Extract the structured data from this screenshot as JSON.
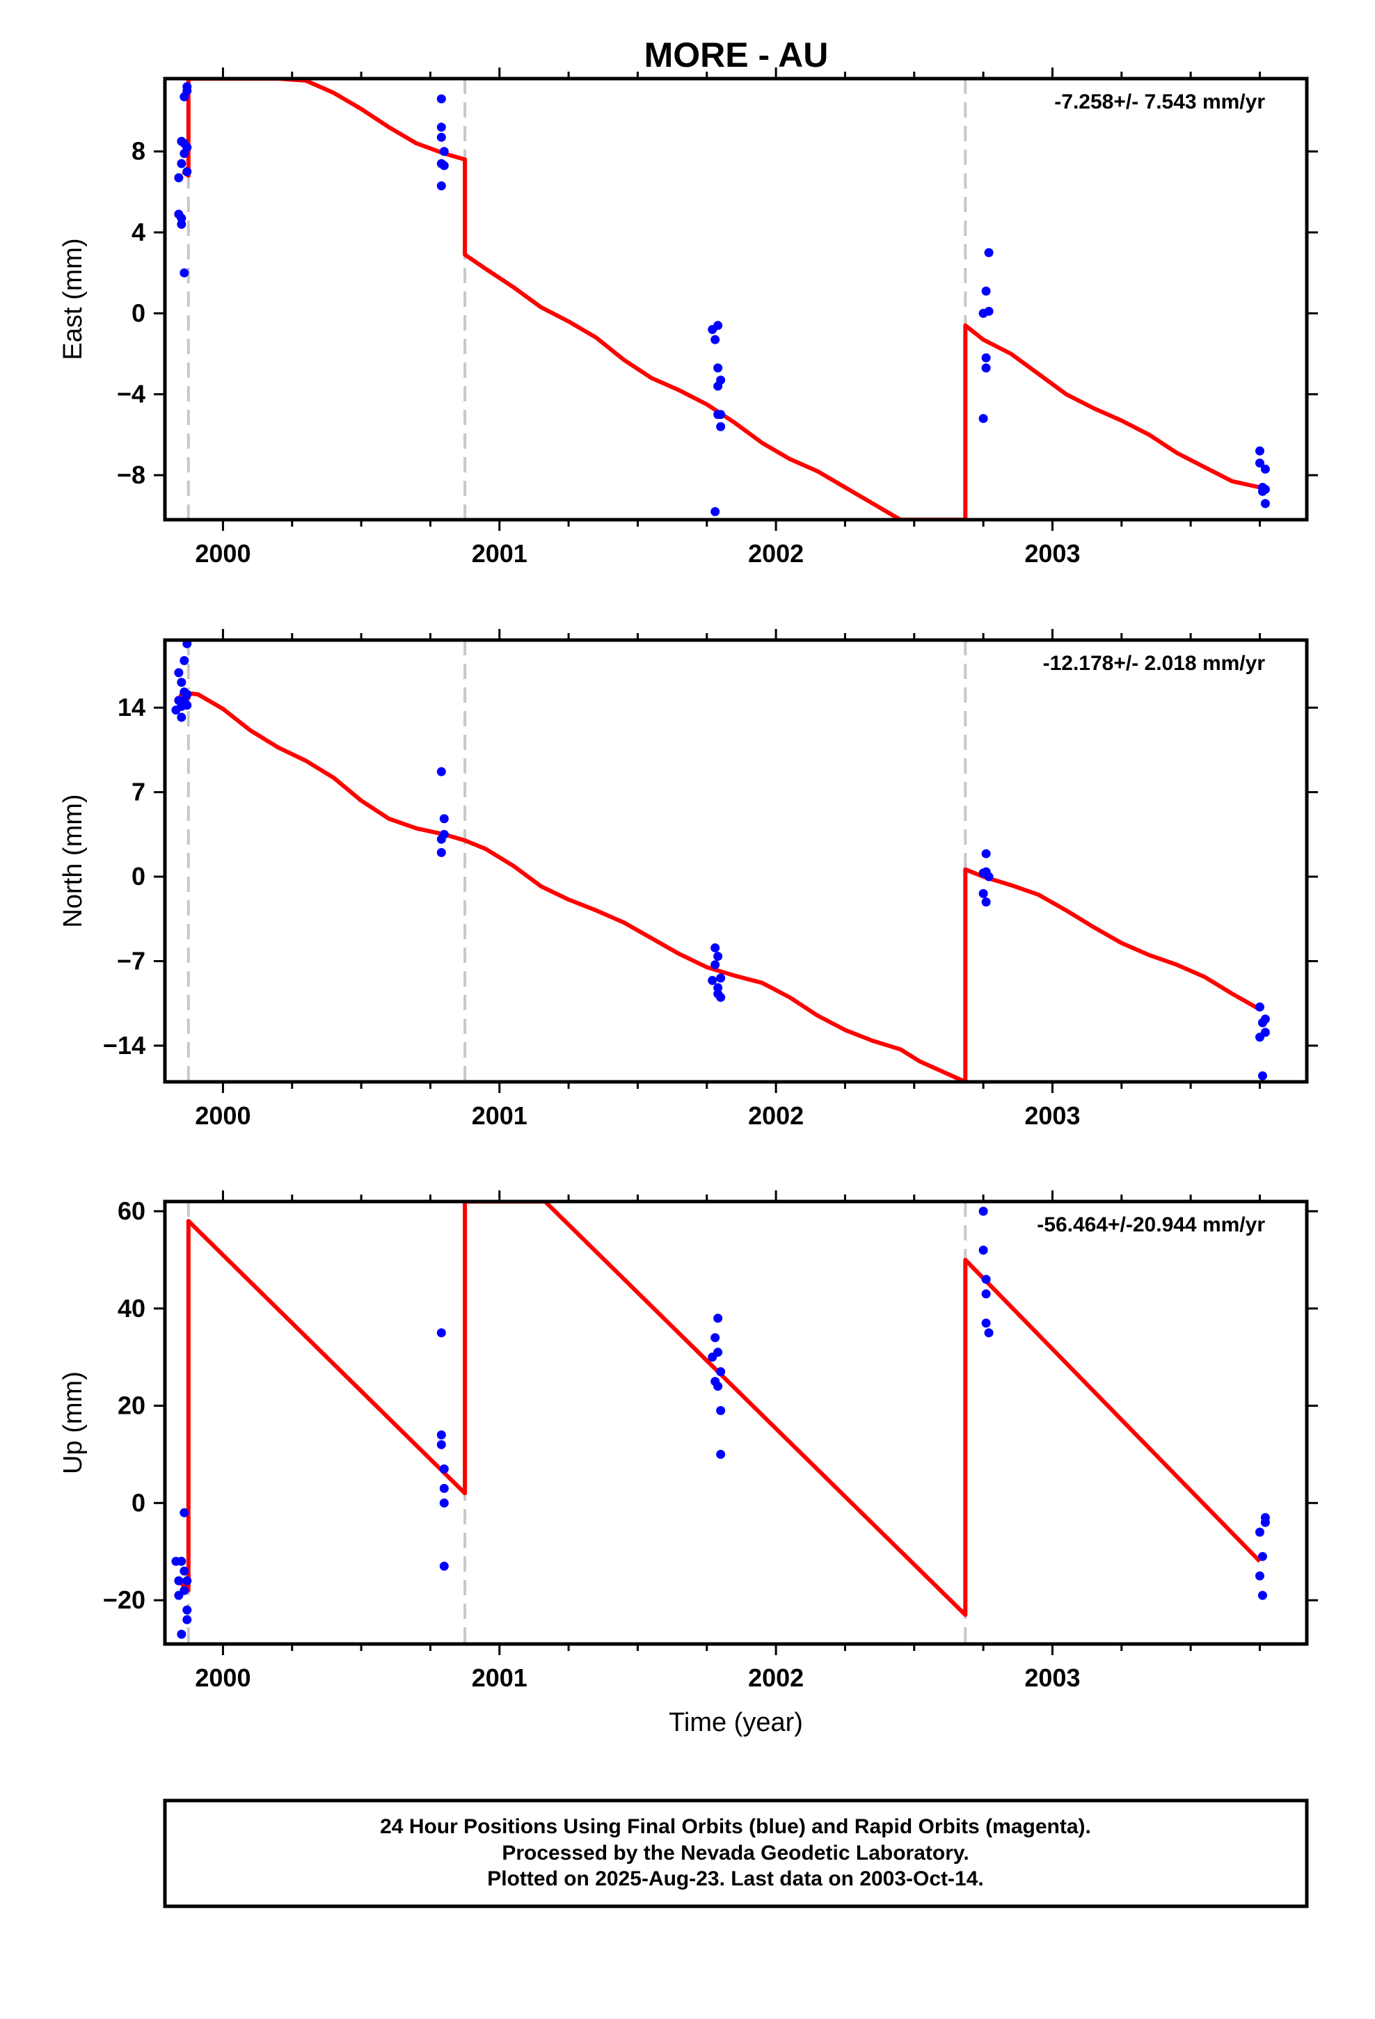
{
  "title": "MORE - AU",
  "footer": {
    "lines": [
      "24 Hour Positions Using Final Orbits (blue) and Rapid Orbits (magenta).",
      "Processed by the Nevada Geodetic Laboratory.",
      "Plotted on 2025-Aug-23. Last data on 2003-Oct-14."
    ]
  },
  "chart_data": [
    {
      "type": "scatter",
      "component": "east",
      "ylabel": "East (mm)",
      "xlabel": "",
      "xlim": [
        1999.79,
        2003.92
      ],
      "ylim": [
        -10.2,
        11.6
      ],
      "x_ticks": [
        2000,
        2001,
        2002,
        2003
      ],
      "y_ticks": [
        -8,
        -4,
        0,
        4,
        8
      ],
      "rate_text": "-7.258+/- 7.543 mm/yr",
      "dashed_lines_x": [
        1999.875,
        2000.875,
        2002.685
      ],
      "colors": {
        "points": "#0000ff",
        "model": "#ff0000",
        "breaks": "#c8c8c8"
      },
      "series": [
        {
          "role": "observations",
          "x": [
            1999.84,
            1999.84,
            1999.85,
            1999.85,
            1999.85,
            1999.85,
            1999.86,
            1999.86,
            1999.86,
            1999.86,
            1999.87,
            1999.87,
            1999.87,
            1999.87,
            2000.79,
            2000.79,
            2000.79,
            2000.79,
            2000.79,
            2000.8,
            2000.8,
            2001.77,
            2001.78,
            2001.78,
            2001.79,
            2001.79,
            2001.79,
            2001.79,
            2001.8,
            2001.8,
            2001.8,
            2002.75,
            2002.75,
            2002.76,
            2002.76,
            2002.76,
            2002.77,
            2002.77,
            2003.75,
            2003.75,
            2003.76,
            2003.76,
            2003.77,
            2003.77,
            2003.77
          ],
          "y": [
            6.7,
            4.9,
            7.4,
            4.7,
            8.5,
            4.4,
            10.7,
            8.4,
            7.9,
            2.0,
            11.2,
            8.2,
            7.0,
            11.0,
            6.3,
            7.4,
            10.6,
            8.7,
            9.2,
            7.3,
            8.0,
            -0.8,
            -9.8,
            -1.3,
            -0.6,
            -5.0,
            -2.7,
            -3.6,
            -5.0,
            -3.3,
            -5.6,
            0.0,
            -5.2,
            -2.2,
            -2.7,
            1.1,
            3.0,
            0.1,
            -6.8,
            -7.4,
            -8.6,
            -8.8,
            -9.4,
            -8.7,
            -7.7
          ]
        },
        {
          "role": "model",
          "x": [
            1999.855,
            1999.875,
            1999.875,
            1999.885,
            1999.91,
            2000.0,
            2000.1,
            2000.2,
            2000.3,
            2000.4,
            2000.5,
            2000.6,
            2000.7,
            2000.8,
            2000.875,
            2000.875,
            2000.95,
            2001.05,
            2001.15,
            2001.25,
            2001.35,
            2001.45,
            2001.55,
            2001.65,
            2001.75,
            2001.85,
            2001.95,
            2002.05,
            2002.15,
            2002.25,
            2002.35,
            2002.45,
            2002.55,
            2002.65,
            2002.685,
            2002.685,
            2002.75,
            2002.85,
            2002.95,
            2003.05,
            2003.15,
            2003.25,
            2003.35,
            2003.45,
            2003.55,
            2003.65,
            2003.75
          ],
          "y": [
            7.0,
            6.8,
            11.6,
            11.6,
            11.6,
            11.6,
            11.6,
            11.6,
            11.5,
            10.9,
            10.1,
            9.2,
            8.4,
            7.9,
            7.6,
            2.9,
            2.2,
            1.3,
            0.3,
            -0.4,
            -1.2,
            -2.3,
            -3.2,
            -3.8,
            -4.5,
            -5.4,
            -6.4,
            -7.2,
            -7.8,
            -8.6,
            -9.4,
            -10.2,
            -10.2,
            -10.2,
            -10.2,
            -0.6,
            -1.3,
            -2.0,
            -3.0,
            -4.0,
            -4.7,
            -5.3,
            -6.0,
            -6.9,
            -7.6,
            -8.3,
            -8.6
          ]
        }
      ]
    },
    {
      "type": "scatter",
      "component": "north",
      "ylabel": "North (mm)",
      "xlabel": "",
      "xlim": [
        1999.79,
        2003.92
      ],
      "ylim": [
        -17.0,
        19.6
      ],
      "x_ticks": [
        2000,
        2001,
        2002,
        2003
      ],
      "y_ticks": [
        -14,
        -7,
        0,
        7,
        14
      ],
      "rate_text": "-12.178+/- 2.018 mm/yr",
      "dashed_lines_x": [
        1999.875,
        2000.875,
        2002.685
      ],
      "colors": {
        "points": "#0000ff",
        "model": "#ff0000",
        "breaks": "#c8c8c8"
      },
      "series": [
        {
          "role": "observations",
          "x": [
            1999.83,
            1999.84,
            1999.84,
            1999.85,
            1999.85,
            1999.85,
            1999.86,
            1999.86,
            1999.86,
            1999.87,
            1999.87,
            1999.87,
            2000.79,
            2000.79,
            2000.79,
            2000.8,
            2000.8,
            2001.77,
            2001.78,
            2001.78,
            2001.79,
            2001.79,
            2001.79,
            2001.8,
            2001.8,
            2002.75,
            2002.75,
            2002.76,
            2002.76,
            2002.76,
            2002.77,
            2003.75,
            2003.75,
            2003.76,
            2003.76,
            2003.77,
            2003.77
          ],
          "y": [
            13.8,
            16.9,
            14.6,
            14.1,
            16.1,
            13.2,
            17.9,
            15.3,
            14.6,
            19.3,
            14.2,
            15.1,
            2.0,
            3.1,
            8.7,
            4.8,
            3.5,
            -8.6,
            -5.9,
            -7.3,
            -9.2,
            -9.7,
            -6.6,
            -8.4,
            -10.0,
            0.3,
            -1.4,
            -2.1,
            0.4,
            1.9,
            0.0,
            -13.3,
            -10.8,
            -12.1,
            -16.5,
            -12.9,
            -11.8
          ]
        },
        {
          "role": "model",
          "x": [
            1999.84,
            1999.875,
            1999.875,
            1999.91,
            2000.0,
            2000.1,
            2000.2,
            2000.3,
            2000.4,
            2000.5,
            2000.6,
            2000.7,
            2000.8,
            2000.875,
            2000.95,
            2001.05,
            2001.15,
            2001.25,
            2001.35,
            2001.45,
            2001.55,
            2001.65,
            2001.75,
            2001.85,
            2001.95,
            2002.05,
            2002.15,
            2002.25,
            2002.35,
            2002.45,
            2002.52,
            2002.685,
            2002.685,
            2002.75,
            2002.85,
            2002.95,
            2003.05,
            2003.15,
            2003.25,
            2003.35,
            2003.45,
            2003.55,
            2003.65,
            2003.75
          ],
          "y": [
            15.0,
            14.8,
            15.2,
            15.1,
            13.9,
            12.1,
            10.7,
            9.6,
            8.2,
            6.3,
            4.8,
            4.0,
            3.5,
            3.0,
            2.3,
            0.9,
            -0.8,
            -1.9,
            -2.8,
            -3.8,
            -5.1,
            -6.4,
            -7.5,
            -8.2,
            -8.8,
            -10.0,
            -11.5,
            -12.7,
            -13.6,
            -14.3,
            -15.3,
            -17.0,
            0.6,
            0.0,
            -0.7,
            -1.5,
            -2.8,
            -4.2,
            -5.5,
            -6.5,
            -7.3,
            -8.3,
            -9.7,
            -11.0
          ]
        }
      ]
    },
    {
      "type": "scatter",
      "component": "up",
      "ylabel": "Up (mm)",
      "xlabel": "Time (year)",
      "xlim": [
        1999.79,
        2003.92
      ],
      "ylim": [
        -29.0,
        62.0
      ],
      "x_ticks": [
        2000,
        2001,
        2002,
        2003
      ],
      "y_ticks": [
        -20,
        0,
        20,
        40,
        60
      ],
      "rate_text": "-56.464+/-20.944 mm/yr",
      "dashed_lines_x": [
        1999.875,
        2000.875,
        2002.685
      ],
      "colors": {
        "points": "#0000ff",
        "model": "#ff0000",
        "breaks": "#c8c8c8"
      },
      "series": [
        {
          "role": "observations",
          "x": [
            1999.83,
            1999.84,
            1999.84,
            1999.85,
            1999.85,
            1999.86,
            1999.86,
            1999.86,
            1999.87,
            1999.87,
            1999.87,
            2000.79,
            2000.79,
            2000.79,
            2000.8,
            2000.8,
            2000.8,
            2000.8,
            2001.77,
            2001.78,
            2001.78,
            2001.79,
            2001.79,
            2001.79,
            2001.8,
            2001.8,
            2001.8,
            2002.75,
            2002.75,
            2002.76,
            2002.76,
            2002.76,
            2002.77,
            2003.75,
            2003.75,
            2003.76,
            2003.76,
            2003.77,
            2003.77
          ],
          "y": [
            -12.0,
            -19.0,
            -16.0,
            -27.0,
            -12.0,
            -18.0,
            -2.0,
            -14.0,
            -24.0,
            -22.0,
            -16.0,
            14.0,
            12.0,
            35.0,
            7.0,
            0.0,
            3.0,
            -13.0,
            30.0,
            25.0,
            34.0,
            38.0,
            24.0,
            31.0,
            19.0,
            10.0,
            27.0,
            60.0,
            52.0,
            46.0,
            43.0,
            37.0,
            35.0,
            -15.0,
            -6.0,
            -11.0,
            -19.0,
            -3.0,
            -4.0
          ]
        },
        {
          "role": "model",
          "x": [
            1999.84,
            1999.875,
            1999.875,
            2000.875,
            2000.875,
            2000.885,
            2001.165,
            2002.685,
            2002.685,
            2003.75
          ],
          "y": [
            -16.0,
            -18.0,
            58.0,
            2.0,
            62.0,
            62.0,
            62.0,
            -23.0,
            50.0,
            -12.0
          ]
        }
      ]
    }
  ]
}
